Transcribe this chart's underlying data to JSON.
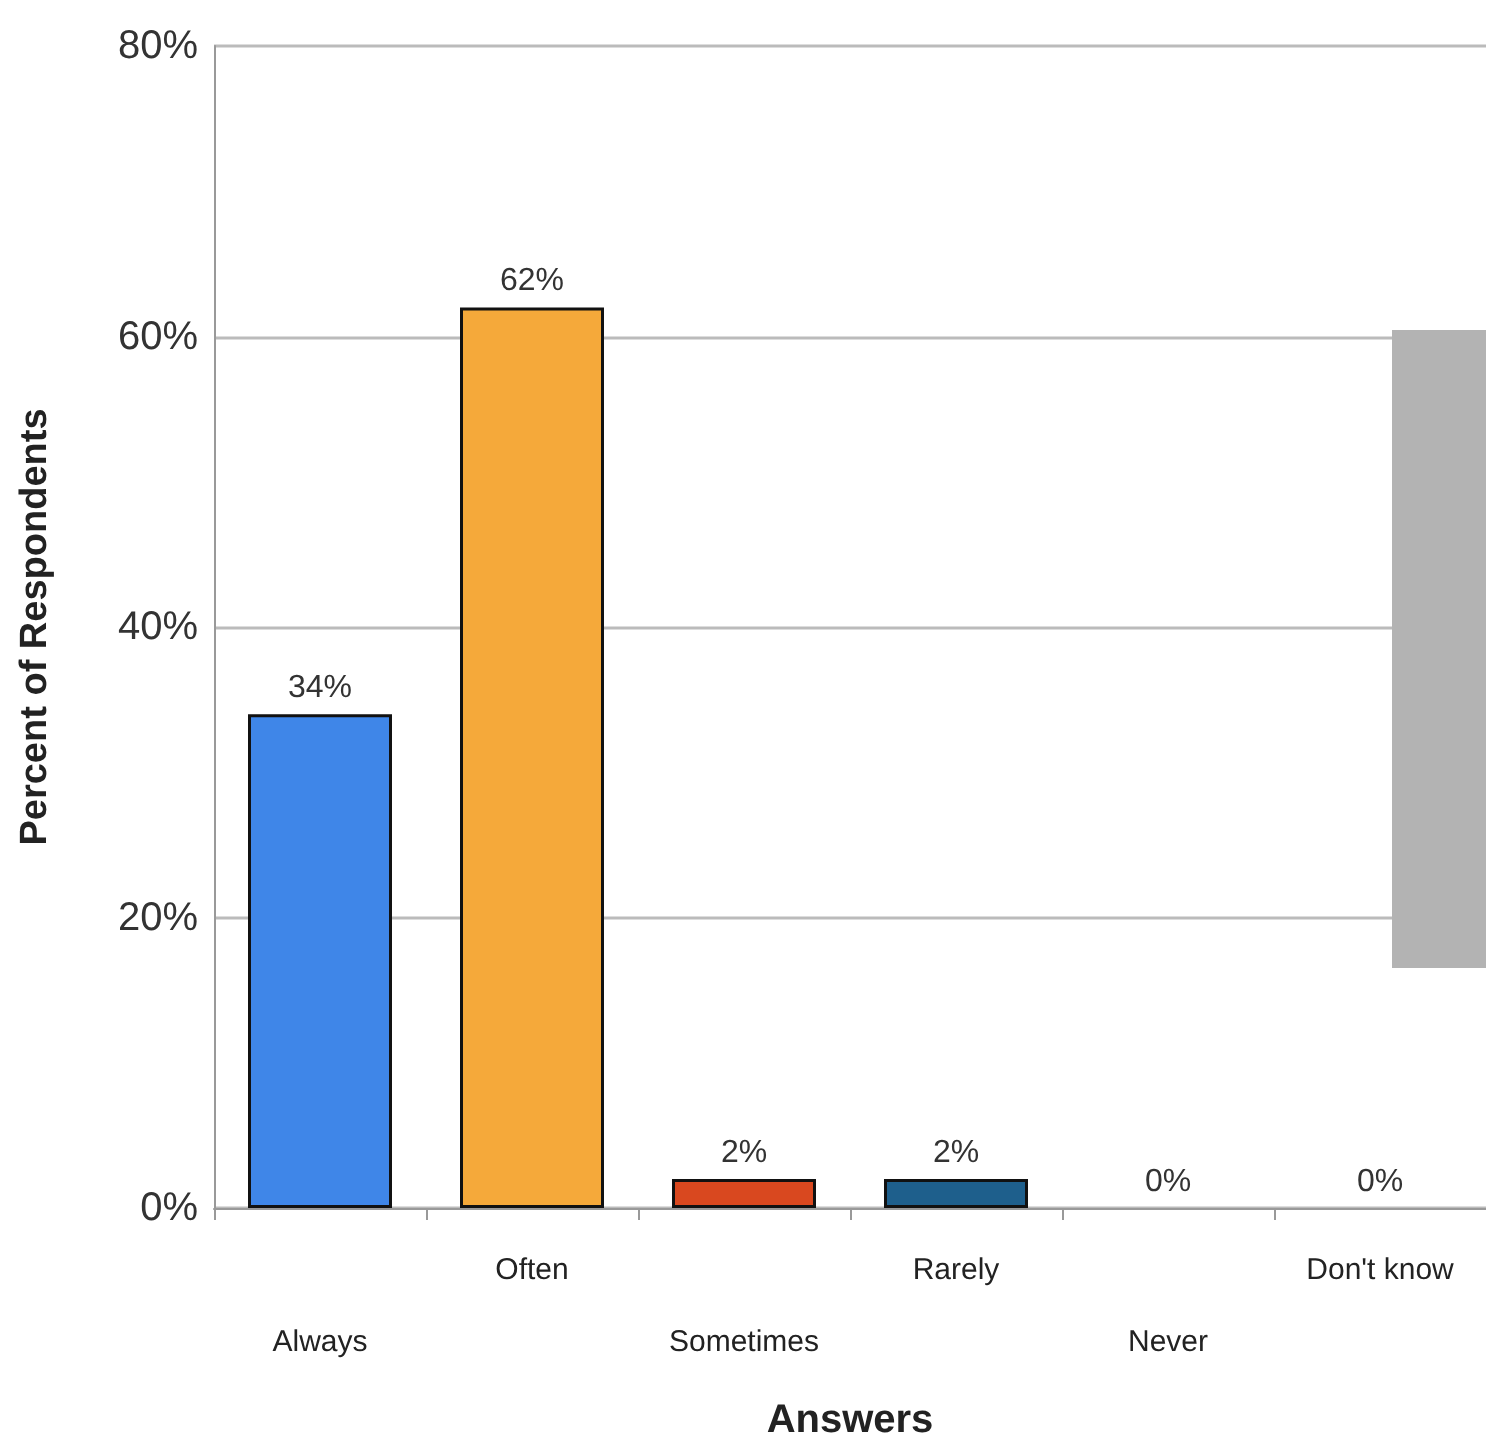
{
  "chart_data": {
    "type": "bar",
    "xlabel": "Answers",
    "ylabel": "Percent of Respondents",
    "categories": [
      "Always",
      "Often",
      "Sometimes",
      "Rarely",
      "Never",
      "Don't know"
    ],
    "values": [
      34,
      62,
      2,
      2,
      0,
      0
    ],
    "colors": [
      "#3f86e8",
      "#f5a93a",
      "#d9481f",
      "#1e5f8c",
      null,
      null
    ],
    "value_labels": [
      "34%",
      "62%",
      "2%",
      "2%",
      "0%",
      "0%"
    ],
    "ylim": [
      0,
      80
    ],
    "yticks": [
      {
        "value": 0,
        "label": "0%"
      },
      {
        "value": 20,
        "label": "20%"
      },
      {
        "value": 40,
        "label": "40%"
      },
      {
        "value": 60,
        "label": "60%"
      },
      {
        "value": 80,
        "label": "80%"
      }
    ],
    "grid": "y"
  }
}
